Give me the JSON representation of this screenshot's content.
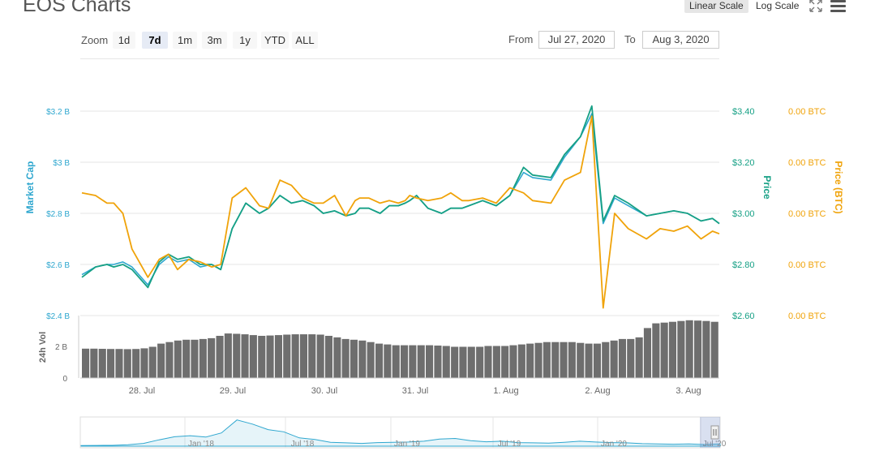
{
  "header": {
    "title": "EOS Charts",
    "linear_scale": "Linear Scale",
    "log_scale": "Log Scale"
  },
  "toolbar": {
    "zoom_label": "Zoom",
    "zoom_buttons": [
      "1d",
      "7d",
      "1m",
      "3m",
      "1y",
      "YTD",
      "ALL"
    ],
    "active_zoom": "7d",
    "from_label": "From",
    "from_value": "Jul 27, 2020",
    "to_label": "To",
    "to_value": "Aug 3, 2020"
  },
  "colors": {
    "market_cap": "#2fa7cf",
    "price_usd": "#16a085",
    "price_btc": "#f0a30a",
    "volume": "#6e6e6e",
    "grid": "#e6e6e6"
  },
  "chart_data": [
    {
      "type": "line",
      "x_ticks": [
        "28. Jul",
        "29. Jul",
        "30. Jul",
        "31. Jul",
        "1. Aug",
        "2. Aug",
        "3. Aug"
      ],
      "axes": {
        "market_cap": {
          "label": "Market Cap",
          "ticks": [
            "$2.4 B",
            "$2.6 B",
            "$2.8 B",
            "$3 B",
            "$3.2 B"
          ]
        },
        "price": {
          "label": "Price",
          "ticks": [
            "$2.60",
            "$2.80",
            "$3.00",
            "$3.20",
            "$3.40"
          ],
          "ylim": [
            2.6,
            3.4
          ]
        },
        "price_btc": {
          "label": "Price (BTC)",
          "ticks": [
            "0.00 BTC",
            "0.00 BTC",
            "0.00 BTC",
            "0.00 BTC",
            "0.00 BTC"
          ]
        }
      },
      "x_days": [
        0,
        0.3,
        0.55,
        0.7,
        0.9,
        1.1,
        1.45,
        1.7,
        1.9,
        2.1,
        2.35,
        2.6,
        2.85,
        3.05,
        3.3,
        3.6,
        3.9,
        4.1,
        4.35,
        4.6,
        4.85,
        5.1,
        5.3,
        5.55,
        5.8,
        6.0,
        6.1,
        6.3,
        6.55,
        6.75,
        6.95,
        7.1,
        7.2,
        7.35,
        7.6,
        7.9,
        8.1,
        8.35,
        8.5,
        8.8,
        9.1,
        9.4,
        9.7,
        9.9,
        10.3,
        10.6,
        10.95,
        11.2,
        11.45,
        11.7,
        12.0,
        12.4,
        12.7,
        13.0,
        13.3,
        13.6,
        13.85,
        14.0
      ],
      "series": [
        {
          "name": "Market Cap",
          "values": [
            2.76,
            2.79,
            2.8,
            2.8,
            2.81,
            2.79,
            2.72,
            2.8,
            2.83,
            2.81,
            2.82,
            2.79,
            2.8,
            2.78,
            2.94,
            3.04,
            3.0,
            3.02,
            3.07,
            3.04,
            3.05,
            3.03,
            3.0,
            3.01,
            2.99,
            3.0,
            3.02,
            3.02,
            3.0,
            3.03,
            3.03,
            3.04,
            3.05,
            3.07,
            3.02,
            3.0,
            3.02,
            3.02,
            3.03,
            3.05,
            3.03,
            3.07,
            3.16,
            3.14,
            3.13,
            3.22,
            3.3,
            3.39,
            2.96,
            3.06,
            3.03,
            2.99,
            3.0,
            3.01,
            3.0,
            2.97,
            2.98,
            2.96
          ]
        },
        {
          "name": "Price",
          "values": [
            2.75,
            2.79,
            2.8,
            2.79,
            2.8,
            2.78,
            2.71,
            2.81,
            2.84,
            2.82,
            2.83,
            2.8,
            2.8,
            2.78,
            2.94,
            3.04,
            3.0,
            3.02,
            3.07,
            3.04,
            3.05,
            3.03,
            3.0,
            3.01,
            2.99,
            3.0,
            3.02,
            3.02,
            3.0,
            3.03,
            3.03,
            3.04,
            3.05,
            3.07,
            3.02,
            3.0,
            3.02,
            3.02,
            3.03,
            3.05,
            3.03,
            3.07,
            3.18,
            3.15,
            3.14,
            3.23,
            3.3,
            3.42,
            2.97,
            3.07,
            3.04,
            2.99,
            3.0,
            3.01,
            3.0,
            2.97,
            2.98,
            2.96
          ]
        }
      ],
      "btc_price_relative": [
        3.08,
        3.07,
        3.04,
        3.04,
        3.0,
        2.86,
        2.75,
        2.82,
        2.84,
        2.78,
        2.82,
        2.81,
        2.79,
        2.8,
        3.06,
        3.1,
        3.03,
        3.02,
        3.13,
        3.11,
        3.06,
        3.04,
        3.04,
        3.07,
        2.99,
        3.05,
        3.06,
        3.06,
        3.04,
        3.05,
        3.04,
        3.05,
        3.07,
        3.06,
        3.05,
        3.06,
        3.08,
        3.05,
        3.05,
        3.06,
        3.04,
        3.1,
        3.08,
        3.05,
        3.04,
        3.13,
        3.16,
        3.38,
        2.63,
        3.0,
        2.94,
        2.9,
        2.94,
        2.93,
        2.95,
        2.9,
        2.93,
        2.92
      ]
    },
    {
      "type": "bar",
      "label": "24h Vol",
      "ticks": [
        "0",
        "2 B"
      ],
      "ylim": [
        0,
        4
      ],
      "values_billions": [
        1.88,
        1.88,
        1.87,
        1.86,
        1.86,
        1.85,
        1.86,
        1.9,
        2.0,
        2.2,
        2.3,
        2.4,
        2.45,
        2.45,
        2.5,
        2.55,
        2.7,
        2.85,
        2.83,
        2.8,
        2.75,
        2.7,
        2.72,
        2.75,
        2.78,
        2.8,
        2.8,
        2.8,
        2.78,
        2.7,
        2.6,
        2.5,
        2.45,
        2.4,
        2.3,
        2.2,
        2.15,
        2.1,
        2.1,
        2.1,
        2.1,
        2.1,
        2.08,
        2.05,
        2.0,
        2.0,
        2.0,
        2.0,
        2.05,
        2.05,
        2.05,
        2.1,
        2.15,
        2.2,
        2.25,
        2.3,
        2.3,
        2.3,
        2.3,
        2.25,
        2.2,
        2.2,
        2.3,
        2.4,
        2.5,
        2.5,
        2.6,
        3.2,
        3.5,
        3.55,
        3.6,
        3.65,
        3.7,
        3.68,
        3.65,
        3.6
      ]
    },
    {
      "type": "area",
      "label": "navigator",
      "x_labels": [
        "Jan '18",
        "Jul '18",
        "Jan '19",
        "Jul '19",
        "Jan '20",
        "Jul '20"
      ],
      "values": [
        0.2,
        0.25,
        0.3,
        0.5,
        1.0,
        2.3,
        3.4,
        3.8,
        3.3,
        4.8,
        9.5,
        8.0,
        6.0,
        5.2,
        3.0,
        2.4,
        1.4,
        1.2,
        1.0,
        1.3,
        1.4,
        1.5,
        1.8,
        2.6,
        2.8,
        2.0,
        1.6,
        1.8,
        1.3,
        1.2,
        1.1,
        1.4,
        1.8,
        1.5,
        1.3,
        1.2,
        0.9,
        0.8,
        0.7,
        0.8,
        0.6,
        0.8
      ]
    }
  ]
}
